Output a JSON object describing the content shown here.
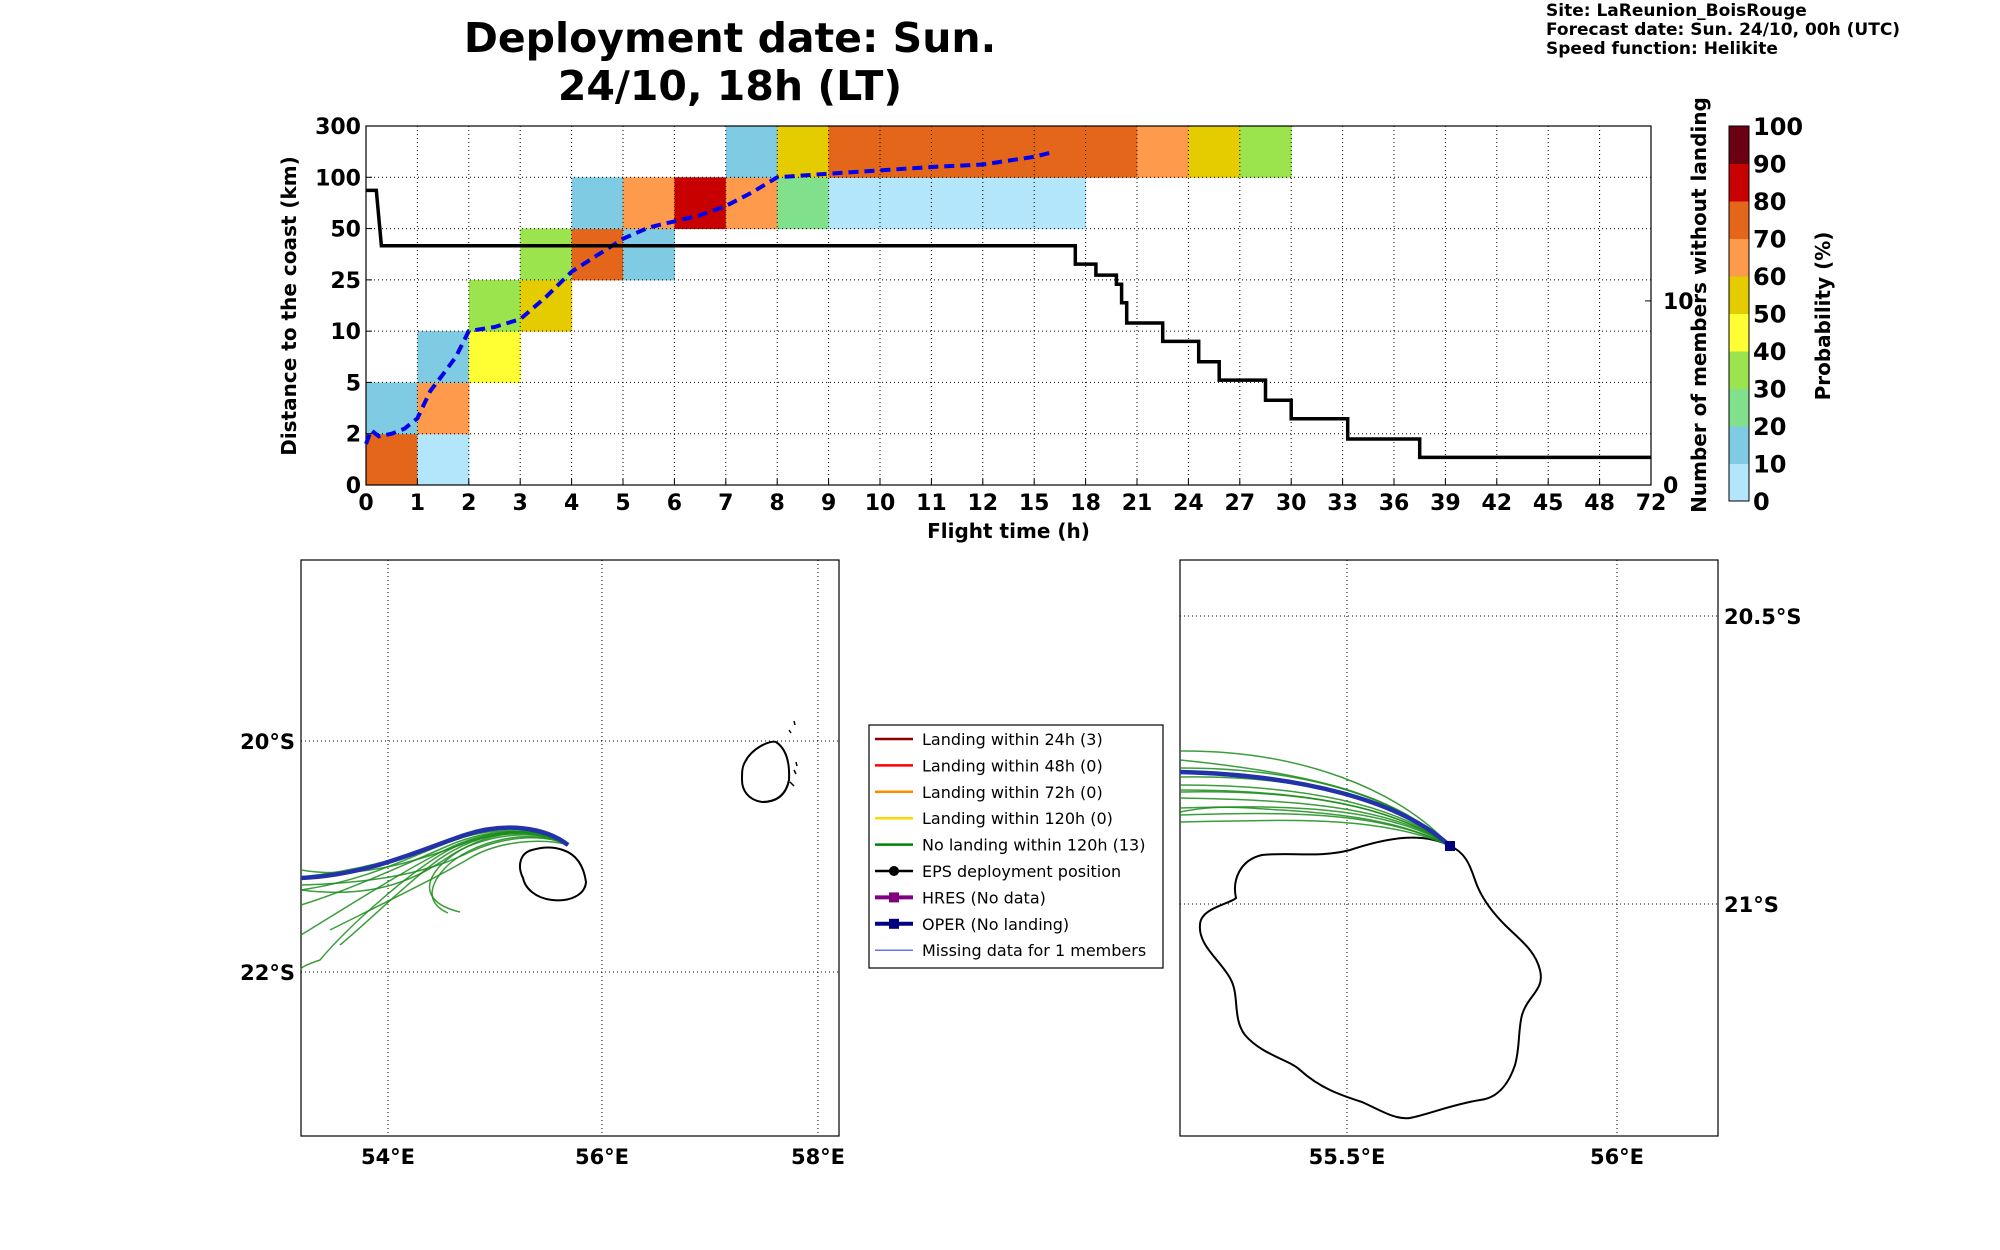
{
  "title": "Deployment date: Sun. 24/10, 18h (LT)",
  "site_info": {
    "site": "Site: LaReunion_BoisRouge",
    "forecast_date": "Forecast date: Sun. 24/10, 00h (UTC)",
    "speed_function": "Speed function: Helikite"
  },
  "chart_data": [
    {
      "type": "heatmap",
      "xlabel": "Flight time (h)",
      "ylabel": "Distance to the coast (km)",
      "y2label": "Number of members without landing",
      "x_ticks": [
        "0",
        "1",
        "2",
        "3",
        "4",
        "5",
        "6",
        "7",
        "8",
        "9",
        "10",
        "11",
        "12",
        "15",
        "18",
        "21",
        "24",
        "27",
        "30",
        "33",
        "36",
        "39",
        "42",
        "45",
        "48",
        "72"
      ],
      "y_ticks": [
        "0",
        "2",
        "5",
        "10",
        "25",
        "50",
        "100",
        "300"
      ],
      "y2_ticks": [
        "0",
        "10"
      ],
      "grid": true,
      "colorbar": {
        "label": "Probability (%)",
        "ticks": [
          "0",
          "10",
          "20",
          "30",
          "40",
          "50",
          "60",
          "70",
          "80",
          "90",
          "100"
        ],
        "colors": [
          "#b3e5fb",
          "#7fcbe3",
          "#80e08c",
          "#9be44d",
          "#ffff33",
          "#e5cc00",
          "#fd9a4c",
          "#e3661b",
          "#c80000",
          "#a00000",
          "#6b0012"
        ]
      },
      "cells": [
        {
          "x": 0,
          "y": 0,
          "c": 7
        },
        {
          "x": 0,
          "y": 1,
          "c": 1
        },
        {
          "x": 1,
          "y": 0,
          "c": 0
        },
        {
          "x": 1,
          "y": 1,
          "c": 6
        },
        {
          "x": 1,
          "y": 2,
          "c": 1
        },
        {
          "x": 2,
          "y": 2,
          "c": 4
        },
        {
          "x": 2,
          "y": 3,
          "c": 3
        },
        {
          "x": 3,
          "y": 3,
          "c": 5
        },
        {
          "x": 3,
          "y": 4,
          "c": 3
        },
        {
          "x": 4,
          "y": 4,
          "c": 7
        },
        {
          "x": 4,
          "y": 5,
          "c": 1
        },
        {
          "x": 5,
          "y": 4,
          "c": 1
        },
        {
          "x": 5,
          "y": 5,
          "c": 6
        },
        {
          "x": 6,
          "y": 5,
          "c": 8
        },
        {
          "x": 7,
          "y": 5,
          "c": 6
        },
        {
          "x": 7,
          "y": 6,
          "c": 1
        },
        {
          "x": 8,
          "y": 5,
          "c": 2
        },
        {
          "x": 8,
          "y": 6,
          "c": 5
        },
        {
          "x": 9,
          "y": 5,
          "c": 0
        },
        {
          "x": 9,
          "y": 6,
          "c": 7
        },
        {
          "x": 10,
          "y": 5,
          "c": 0
        },
        {
          "x": 10,
          "y": 6,
          "c": 7
        },
        {
          "x": 11,
          "y": 5,
          "c": 0
        },
        {
          "x": 11,
          "y": 6,
          "c": 7
        },
        {
          "x": 12,
          "y": 5,
          "c": 0
        },
        {
          "x": 12,
          "y": 6,
          "c": 7
        },
        {
          "x": 13,
          "y": 5,
          "c": 0
        },
        {
          "x": 13,
          "y": 6,
          "c": 7
        },
        {
          "x": 14,
          "y": 6,
          "c": 7
        },
        {
          "x": 15,
          "y": 6,
          "c": 6
        },
        {
          "x": 16,
          "y": 6,
          "c": 5
        },
        {
          "x": 17,
          "y": 6,
          "c": 3
        }
      ],
      "median_distance_curve": [
        [
          0,
          1.6
        ],
        [
          0.1,
          2.2
        ],
        [
          0.25,
          1.9
        ],
        [
          0.5,
          2.0
        ],
        [
          0.75,
          2.3
        ],
        [
          1.0,
          2.9
        ],
        [
          1.25,
          4.5
        ],
        [
          1.5,
          5.8
        ],
        [
          1.75,
          7.5
        ],
        [
          2.0,
          10.0
        ],
        [
          2.5,
          11.2
        ],
        [
          3.0,
          13.5
        ],
        [
          3.5,
          20.0
        ],
        [
          4.0,
          29.0
        ],
        [
          4.5,
          37.0
        ],
        [
          5.0,
          45.0
        ],
        [
          5.5,
          51.0
        ],
        [
          6.0,
          57.0
        ],
        [
          6.5,
          63.0
        ],
        [
          7.0,
          72.0
        ],
        [
          7.5,
          85.0
        ],
        [
          8.0,
          100.0
        ],
        [
          9.0,
          114.0
        ],
        [
          10.0,
          127.0
        ],
        [
          11.0,
          140.0
        ],
        [
          12.0,
          150.0
        ],
        [
          13.0,
          180.0
        ],
        [
          13.4,
          200.0
        ]
      ],
      "members_without_landing_steps": [
        [
          0,
          16
        ],
        [
          0.2,
          16
        ],
        [
          0.3,
          13
        ],
        [
          13.8,
          13
        ],
        [
          13.8,
          12
        ],
        [
          14.2,
          12
        ],
        [
          14.2,
          11.4
        ],
        [
          14.6,
          11.4
        ],
        [
          14.6,
          10.9
        ],
        [
          14.7,
          10.9
        ],
        [
          14.7,
          9.9
        ],
        [
          14.8,
          9.9
        ],
        [
          14.8,
          8.8
        ],
        [
          15.5,
          8.8
        ],
        [
          15.5,
          7.8
        ],
        [
          16.2,
          7.8
        ],
        [
          16.2,
          6.7
        ],
        [
          16.6,
          6.7
        ],
        [
          16.6,
          5.7
        ],
        [
          17.5,
          5.7
        ],
        [
          17.5,
          4.6
        ],
        [
          18.0,
          4.6
        ],
        [
          18.0,
          3.6
        ],
        [
          19.1,
          3.6
        ],
        [
          19.1,
          2.5
        ],
        [
          20.5,
          2.5
        ],
        [
          20.5,
          1.5
        ],
        [
          25.0,
          1.5
        ]
      ]
    },
    {
      "type": "map",
      "name": "overview",
      "x_ticks": [
        "54°E",
        "56°E",
        "58°E"
      ],
      "y_ticks": [
        "20°S",
        "22°S"
      ],
      "lon_range": [
        53.2,
        58.2
      ],
      "lat_range": [
        -23.5,
        -18.4
      ]
    },
    {
      "type": "map",
      "name": "zoom",
      "x_ticks": [
        "55.5°E",
        "56°E"
      ],
      "y_ticks": [
        "20.5°S",
        "21°S"
      ],
      "lon_range": [
        55.2,
        56.2
      ],
      "lat_range": [
        -21.4,
        -20.4
      ]
    }
  ],
  "legend": {
    "items": [
      {
        "label": "Landing within 24h (3)",
        "color": "#8b0000",
        "marker": "line"
      },
      {
        "label": "Landing within 48h (0)",
        "color": "#ff0000",
        "marker": "line"
      },
      {
        "label": "Landing within 72h (0)",
        "color": "#ff8c00",
        "marker": "line"
      },
      {
        "label": "Landing within 120h (0)",
        "color": "#ffd700",
        "marker": "line"
      },
      {
        "label": "No landing within 120h (13)",
        "color": "#008000",
        "marker": "line"
      },
      {
        "label": "EPS deployment position",
        "color": "#000000",
        "marker": "dot"
      },
      {
        "label": "HRES (No data)",
        "color": "#800080",
        "marker": "square"
      },
      {
        "label": "OPER (No landing)",
        "color": "#000080",
        "marker": "square"
      },
      {
        "label": "Missing data for 1 members",
        "color": "#3344ee",
        "marker": "thin"
      }
    ]
  }
}
